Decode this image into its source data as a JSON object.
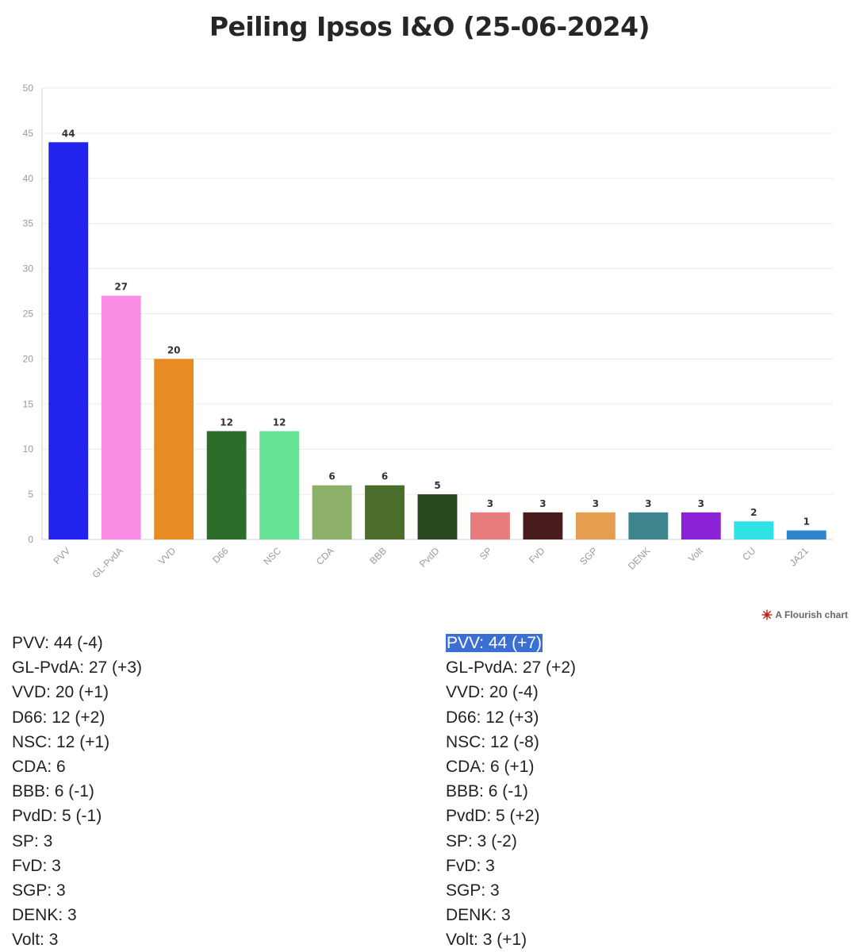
{
  "title": "Peiling Ipsos I&O (25-06-2024)",
  "credit": "A Flourish chart",
  "chart_data": {
    "type": "bar",
    "title": "Peiling Ipsos I&O (25-06-2024)",
    "categories": [
      "PVV",
      "GL-PvdA",
      "VVD",
      "D66",
      "NSC",
      "CDA",
      "BBB",
      "PvdD",
      "SP",
      "FvD",
      "SGP",
      "DENK",
      "Volt",
      "CU",
      "JA21"
    ],
    "values": [
      44,
      27,
      20,
      12,
      12,
      6,
      6,
      5,
      3,
      3,
      3,
      3,
      3,
      2,
      1
    ],
    "colors": [
      "#2222ee",
      "#fb8de5",
      "#e88b24",
      "#2d6d2c",
      "#66e394",
      "#8caf6a",
      "#4a6d2b",
      "#27481e",
      "#e87b7b",
      "#481b1d",
      "#e59e50",
      "#3e868d",
      "#8c22d6",
      "#2ee2e6",
      "#2e85cc"
    ],
    "ylim": [
      0,
      50
    ],
    "yticks": [
      0,
      5,
      10,
      15,
      20,
      25,
      30,
      35,
      40,
      45,
      50
    ],
    "xlabel": "",
    "ylabel": "",
    "grid": true
  },
  "list_left": [
    "PVV: 44 (-4)",
    "GL-PvdA: 27 (+3)",
    "VVD: 20 (+1)",
    "D66: 12 (+2)",
    "NSC: 12 (+1)",
    "CDA: 6",
    "BBB: 6 (-1)",
    "PvdD: 5 (-1)",
    "SP: 3",
    "FvD: 3",
    "SGP: 3",
    "DENK: 3",
    "Volt: 3"
  ],
  "list_right": [
    "PVV: 44 (+7)",
    "GL-PvdA: 27 (+2)",
    "VVD: 20 (-4)",
    "D66: 12 (+3)",
    "NSC: 12 (-8)",
    "CDA: 6 (+1)",
    "BBB: 6 (-1)",
    "PvdD: 5 (+2)",
    "SP: 3 (-2)",
    "FvD: 3",
    "SGP: 3",
    "DENK: 3",
    "Volt: 3 (+1)"
  ],
  "selected_right_index": 0
}
